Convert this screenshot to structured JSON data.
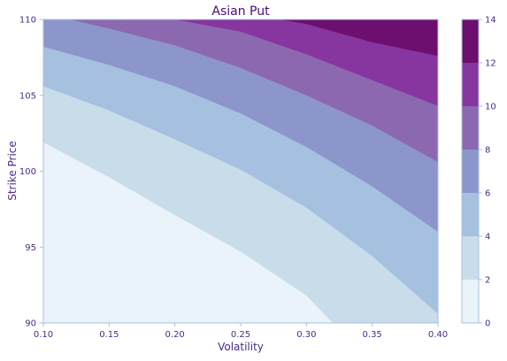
{
  "chart_data": {
    "type": "heatmap",
    "title": "Asian Put",
    "xlabel": "Volatility",
    "ylabel": "Strike Price",
    "xlim": [
      0.1,
      0.4
    ],
    "ylim": [
      90,
      110
    ],
    "x_ticks": [
      "0.10",
      "0.15",
      "0.20",
      "0.25",
      "0.30",
      "0.35",
      "0.40"
    ],
    "y_ticks": [
      "90",
      "95",
      "100",
      "105",
      "110"
    ],
    "colorbar": {
      "levels": [
        0,
        2,
        4,
        6,
        8,
        10,
        12,
        14
      ],
      "tick_labels": [
        "0",
        "2",
        "4",
        "6",
        "8",
        "10",
        "12",
        "14"
      ],
      "colors": [
        "#eaf3f9",
        "#c9dcea",
        "#a6c1df",
        "#8c96cb",
        "#8c68b0",
        "#87359f",
        "#6c0f6e"
      ]
    },
    "contours": [
      {
        "level": 2,
        "points": [
          [
            0.1,
            101.9
          ],
          [
            0.15,
            99.6
          ],
          [
            0.2,
            97.1
          ],
          [
            0.25,
            94.7
          ],
          [
            0.3,
            91.8
          ],
          [
            0.32,
            90.0
          ]
        ]
      },
      {
        "level": 4,
        "points": [
          [
            0.1,
            105.6
          ],
          [
            0.15,
            104.0
          ],
          [
            0.2,
            102.1
          ],
          [
            0.25,
            100.1
          ],
          [
            0.3,
            97.6
          ],
          [
            0.35,
            94.4
          ],
          [
            0.4,
            90.6
          ]
        ]
      },
      {
        "level": 6,
        "points": [
          [
            0.1,
            108.2
          ],
          [
            0.15,
            107.0
          ],
          [
            0.2,
            105.6
          ],
          [
            0.25,
            103.8
          ],
          [
            0.3,
            101.6
          ],
          [
            0.35,
            99.0
          ],
          [
            0.4,
            96.0
          ]
        ]
      },
      {
        "level": 8,
        "points": [
          [
            0.12,
            110.0
          ],
          [
            0.15,
            109.4
          ],
          [
            0.2,
            108.3
          ],
          [
            0.25,
            106.8
          ],
          [
            0.3,
            105.0
          ],
          [
            0.35,
            103.0
          ],
          [
            0.4,
            100.6
          ]
        ]
      },
      {
        "level": 10,
        "points": [
          [
            0.2,
            110.0
          ],
          [
            0.25,
            109.2
          ],
          [
            0.3,
            107.7
          ],
          [
            0.35,
            106.0
          ],
          [
            0.4,
            104.3
          ]
        ]
      },
      {
        "level": 12,
        "points": [
          [
            0.28,
            110.0
          ],
          [
            0.3,
            109.7
          ],
          [
            0.35,
            108.5
          ],
          [
            0.4,
            107.6
          ]
        ]
      },
      {
        "level": 14,
        "points": [
          [
            0.36,
            110.0
          ],
          [
            0.38,
            109.4
          ],
          [
            0.4,
            109.0
          ]
        ]
      }
    ]
  }
}
